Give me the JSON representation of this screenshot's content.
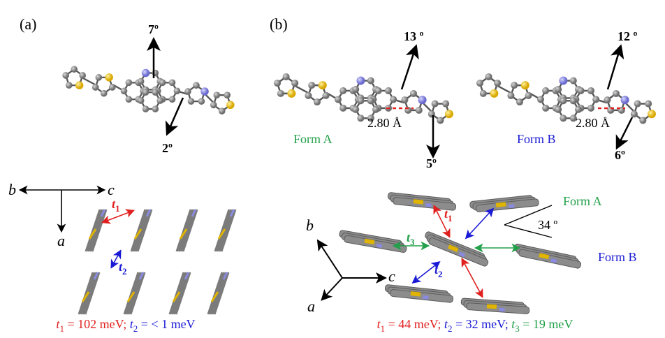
{
  "panel_a": {
    "label": "(a)",
    "angle_up": "7º",
    "angle_down": "2º",
    "axis_labels": [
      "b",
      "c",
      "a"
    ],
    "transfer_labels": [
      {
        "symbol": "t",
        "sub": "1"
      },
      {
        "symbol": "t",
        "sub": "2"
      }
    ],
    "caption": [
      {
        "symbol": "t",
        "sub": "1",
        "text": " = 102 meV; "
      },
      {
        "symbol": "t",
        "sub": "2",
        "text": " = < 1 meV"
      }
    ]
  },
  "panel_b": {
    "label": "(b)",
    "form_a": {
      "name": "Form A",
      "angle_up": "13 º",
      "angle_down": "5º",
      "distance": "2.80 Å"
    },
    "form_b": {
      "name": "Form B",
      "angle_up": "12 º",
      "angle_down": "6º",
      "distance": "2.80 Å"
    },
    "axis_labels": [
      "b",
      "c",
      "a"
    ],
    "transfer_labels": [
      {
        "symbol": "t",
        "sub": "1"
      },
      {
        "symbol": "t",
        "sub": "2"
      },
      {
        "symbol": "t",
        "sub": "3"
      }
    ],
    "legend": [
      "Form A",
      "Form B"
    ],
    "angle": "34 º",
    "caption": [
      {
        "symbol": "t",
        "sub": "1",
        "text": " = 44 meV; "
      },
      {
        "symbol": "t",
        "sub": "2",
        "text": " = 32 meV; "
      },
      {
        "symbol": "t",
        "sub": "3",
        "text": " = 19 meV"
      }
    ]
  }
}
